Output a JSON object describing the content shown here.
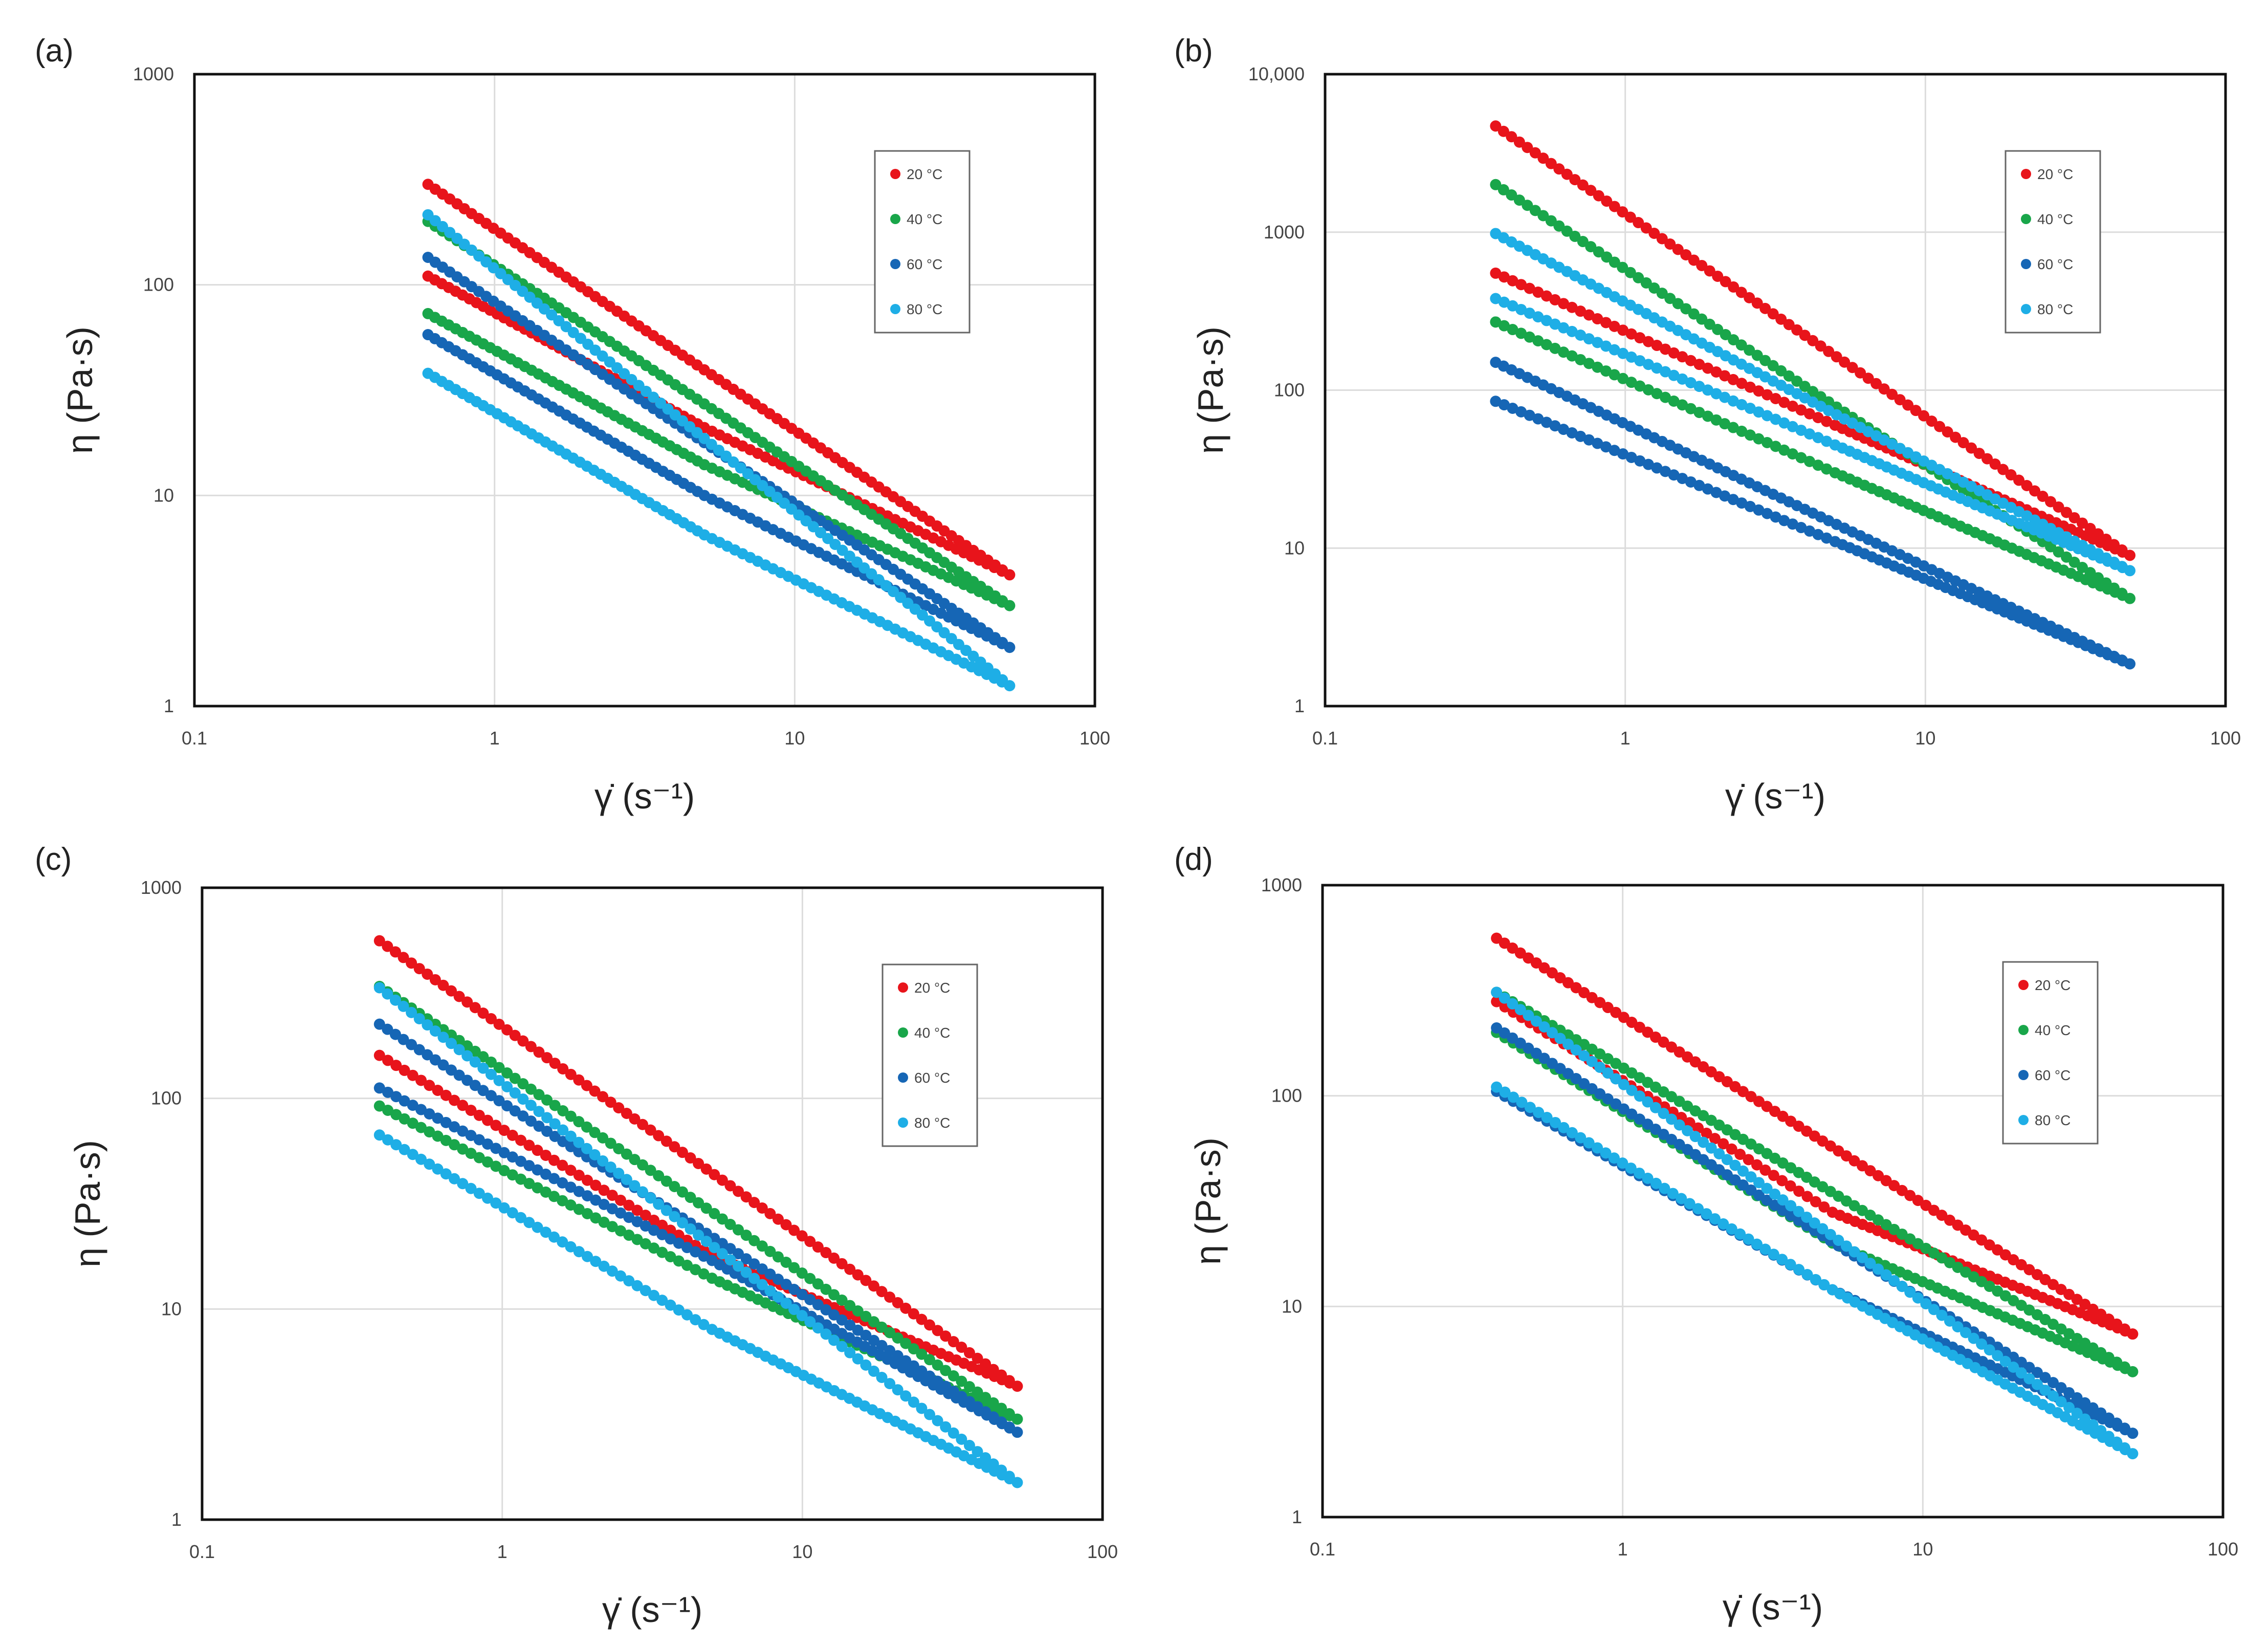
{
  "figure": {
    "panels": [
      "(a)",
      "(b)",
      "(c)",
      "(d)"
    ],
    "x_ticks": [
      "0.1",
      "1",
      "10",
      "100"
    ],
    "y_ticks_a": [
      "1",
      "10",
      "100",
      "1000"
    ],
    "y_ticks_b": [
      "1",
      "10",
      "100",
      "1000",
      "10,000"
    ],
    "xlabel": "γ̇ (s⁻¹)",
    "ylabel": "η (Pa·s)",
    "legend": [
      "20 °C",
      "40 °C",
      "60 °C",
      "80 °C"
    ],
    "colors": [
      "#e8141b",
      "#19a64a",
      "#1666b5",
      "#1eaee6"
    ]
  },
  "chart_data": [
    {
      "type": "scatter",
      "label": "(a)",
      "xlabel": "γ̇ (s⁻¹)",
      "ylabel": "η (Pa·s)",
      "xscale": "log",
      "yscale": "log",
      "xlim": [
        0.1,
        100
      ],
      "ylim": [
        1,
        1000
      ],
      "legend_position": "top-right",
      "series": [
        {
          "name": "20 °C",
          "up_start": [
            0.6,
            300
          ],
          "up_end": [
            52,
            4.2
          ],
          "down_mid": [
            5,
            21
          ],
          "down_end": [
            0.6,
            110
          ]
        },
        {
          "name": "40 °C",
          "up_start": [
            0.6,
            200
          ],
          "up_end": [
            52,
            3.0
          ],
          "down_mid": [
            5,
            14
          ],
          "down_end": [
            0.6,
            73
          ]
        },
        {
          "name": "60 °C",
          "up_start": [
            0.6,
            135
          ],
          "up_end": [
            52,
            1.9
          ],
          "down_mid": [
            5,
            10
          ],
          "down_end": [
            0.6,
            58
          ]
        },
        {
          "name": "80 °C",
          "up_start": [
            0.6,
            215
          ],
          "up_end": [
            52,
            1.25
          ],
          "down_mid": [
            5,
            6.5
          ],
          "down_end": [
            0.6,
            38
          ]
        }
      ]
    },
    {
      "type": "scatter",
      "label": "(b)",
      "xlabel": "γ̇ (s⁻¹)",
      "ylabel": "η (Pa·s)",
      "xscale": "log",
      "yscale": "log",
      "xlim": [
        0.1,
        100
      ],
      "ylim": [
        1,
        10000
      ],
      "legend_position": "top-right",
      "series": [
        {
          "name": "20 °C",
          "up_start": [
            0.37,
            4700
          ],
          "up_end": [
            48,
            9
          ],
          "down_mid": [
            5,
            60
          ],
          "down_end": [
            0.37,
            550
          ]
        },
        {
          "name": "40 °C",
          "up_start": [
            0.37,
            2000
          ],
          "up_end": [
            48,
            4.8
          ],
          "down_mid": [
            5,
            30
          ],
          "down_end": [
            0.37,
            270
          ]
        },
        {
          "name": "60 °C",
          "up_start": [
            0.37,
            150
          ],
          "up_end": [
            48,
            1.85
          ],
          "down_mid": [
            5,
            11
          ],
          "down_end": [
            0.37,
            85
          ]
        },
        {
          "name": "80 °C",
          "up_start": [
            0.37,
            980
          ],
          "up_end": [
            48,
            7.2
          ],
          "down_mid": [
            5,
            45
          ],
          "down_end": [
            0.37,
            380
          ]
        }
      ]
    },
    {
      "type": "scatter",
      "label": "(c)",
      "xlabel": "γ̇ (s⁻¹)",
      "ylabel": "η (Pa·s)",
      "xscale": "log",
      "yscale": "log",
      "xlim": [
        0.1,
        100
      ],
      "ylim": [
        1,
        1000
      ],
      "legend_position": "top-right",
      "series": [
        {
          "name": "20 °C",
          "up_start": [
            0.39,
            560
          ],
          "up_end": [
            52,
            4.3
          ],
          "down_mid": [
            5,
            18
          ],
          "down_end": [
            0.39,
            160
          ]
        },
        {
          "name": "40 °C",
          "up_start": [
            0.39,
            340
          ],
          "up_end": [
            52,
            3.0
          ],
          "down_mid": [
            5,
            14
          ],
          "down_end": [
            0.39,
            92
          ]
        },
        {
          "name": "60 °C",
          "up_start": [
            0.39,
            225
          ],
          "up_end": [
            52,
            2.6
          ],
          "down_mid": [
            5,
            17
          ],
          "down_end": [
            0.39,
            112
          ]
        },
        {
          "name": "80 °C",
          "up_start": [
            0.39,
            335
          ],
          "up_end": [
            52,
            1.5
          ],
          "down_mid": [
            5,
            8
          ],
          "down_end": [
            0.39,
            67
          ]
        }
      ]
    },
    {
      "type": "scatter",
      "label": "(d)",
      "xlabel": "γ̇ (s⁻¹)",
      "ylabel": "η (Pa·s)",
      "xscale": "log",
      "yscale": "log",
      "xlim": [
        0.1,
        100
      ],
      "ylim": [
        1,
        1000
      ],
      "legend_position": "top-right",
      "series": [
        {
          "name": "20 °C",
          "up_start": [
            0.38,
            560
          ],
          "up_end": [
            50,
            7.4
          ],
          "down_mid": [
            5,
            28
          ],
          "down_end": [
            0.38,
            280
          ]
        },
        {
          "name": "40 °C",
          "up_start": [
            0.38,
            310
          ],
          "up_end": [
            50,
            4.9
          ],
          "down_mid": [
            5,
            20
          ],
          "down_end": [
            0.38,
            200
          ]
        },
        {
          "name": "60 °C",
          "up_start": [
            0.38,
            210
          ],
          "up_end": [
            50,
            2.5
          ],
          "down_mid": [
            5,
            12
          ],
          "down_end": [
            0.38,
            105
          ]
        },
        {
          "name": "80 °C",
          "up_start": [
            0.38,
            310
          ],
          "up_end": [
            50,
            2.0
          ],
          "down_mid": [
            5,
            12
          ],
          "down_end": [
            0.38,
            110
          ]
        }
      ]
    }
  ]
}
